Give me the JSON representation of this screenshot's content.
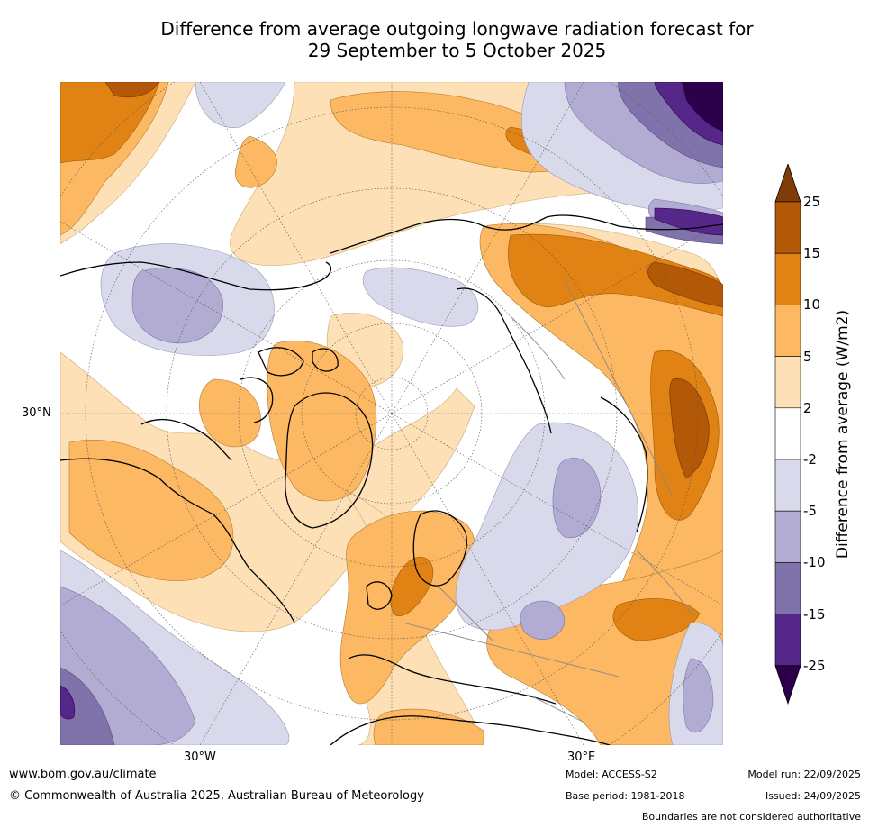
{
  "title": {
    "line1": "Difference from average outgoing longwave radiation forecast for",
    "line2": "29 September to 5 October 2025"
  },
  "axes": {
    "left_label": "30°N",
    "bottom_left": "30°W",
    "bottom_right": "30°E"
  },
  "colorbar": {
    "title": "Difference from average (W/m2)",
    "ticks": [
      "25",
      "15",
      "10",
      "5",
      "2",
      "-2",
      "-5",
      "-10",
      "-15",
      "-25"
    ],
    "colors": [
      "#7f3b08",
      "#b35806",
      "#e08214",
      "#fdb863",
      "#fee0b6",
      "#ffffff",
      "#d8daeb",
      "#b2abd2",
      "#8073ac",
      "#542788",
      "#2d004b"
    ]
  },
  "footer": {
    "website": "www.bom.gov.au/climate",
    "copyright": "© Commonwealth of Australia 2025, Australian Bureau of Meteorology",
    "model": "Model: ACCESS-S2",
    "base_period": "Base period: 1981-2018",
    "model_run": "Model run: 22/09/2025",
    "issued": "Issued: 24/09/2025",
    "disclaimer": "Boundaries are not considered authoritative"
  }
}
